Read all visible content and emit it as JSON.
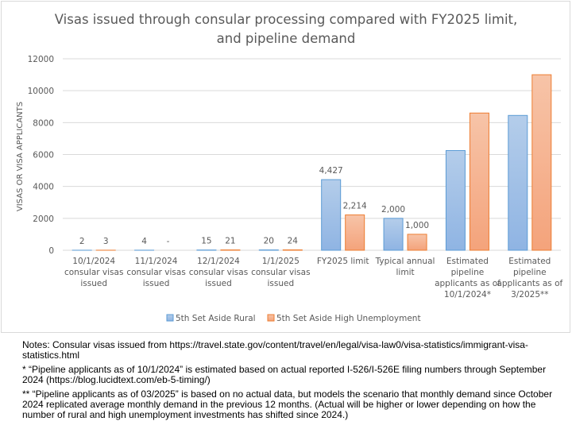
{
  "chart_data": {
    "type": "bar",
    "title": [
      "Visas issued through consular processing compared with FY2025 limit,",
      "and pipeline demand"
    ],
    "xlabel": "",
    "ylabel": "VISAS OR VISA APPLICANTS",
    "ylim": [
      0,
      12000
    ],
    "yticks": [
      0,
      2000,
      4000,
      6000,
      8000,
      10000,
      12000
    ],
    "grid": true,
    "legend_position": "bottom",
    "categories": [
      [
        "10/1/2024",
        "consular visas",
        "issued"
      ],
      [
        "11/1/2024",
        "consular visas",
        "issued"
      ],
      [
        "12/1/2024",
        "consular visas",
        "issued"
      ],
      [
        "1/1/2025",
        "consular visas",
        "issued"
      ],
      [
        "FY2025 limit"
      ],
      [
        "Typical annual",
        "limit"
      ],
      [
        "Estimated",
        "pipeline",
        "applicants as of",
        "10/1/2024*"
      ],
      [
        "Estimated",
        "pipeline",
        "applicants as of",
        "3/2025**"
      ]
    ],
    "series": [
      {
        "name": "5th Set Aside Rural",
        "color": "#5b9bd5",
        "fill_top": "#b4cdea",
        "fill_bottom": "#8fb4e3",
        "values": [
          2,
          4,
          15,
          20,
          4427,
          2000,
          6250,
          8450
        ],
        "labels": [
          "2",
          "4",
          "15",
          "20",
          "4,427",
          "2,000",
          null,
          null
        ]
      },
      {
        "name": "5th Set Aside High Unemployment",
        "color": "#ed7d31",
        "fill_top": "#f7c4a8",
        "fill_bottom": "#f4a37b",
        "values": [
          3,
          0,
          21,
          24,
          2214,
          1000,
          8600,
          11000
        ],
        "labels": [
          "3",
          "-",
          "21",
          "24",
          "2,214",
          "1,000",
          null,
          null
        ]
      }
    ]
  },
  "notes": [
    "Notes: Consular visas issued from https://travel.state.gov/content/travel/en/legal/visa-law0/visa-statistics/immigrant-visa-statistics.html",
    "* “Pipeline applicants as of 10/1/2024” is estimated based on actual reported I-526/I-526E filing numbers through September 2024 (https://blog.lucidtext.com/eb-5-timing/)",
    "** “Pipeline applicants as of 03/2025” is based on no actual data, but models the scenario that monthly demand since October 2024 replicated average monthly demand in the previous 12 months. (Actual will be higher or lower depending on how the number of rural and high unemployment investments has shifted since 2024.)"
  ]
}
